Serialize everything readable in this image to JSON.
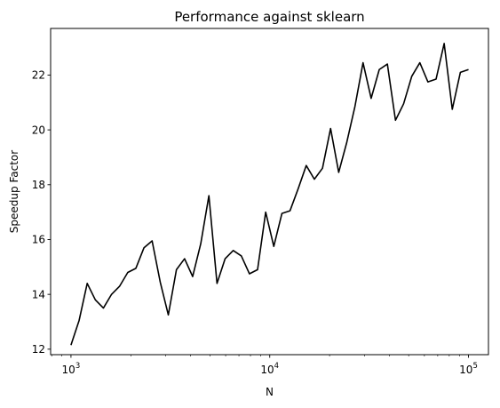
{
  "chart_data": {
    "type": "line",
    "title": "Performance against sklearn",
    "xlabel": "N",
    "ylabel": "Speedup Factor",
    "x_scale": "log",
    "xlim": [
      790,
      126000
    ],
    "ylim": [
      11.8,
      23.7
    ],
    "grid": false,
    "x_ticks": [
      {
        "base": "10",
        "exp": "3",
        "value": 1000
      },
      {
        "base": "10",
        "exp": "4",
        "value": 10000
      },
      {
        "base": "10",
        "exp": "5",
        "value": 100000
      }
    ],
    "y_ticks": [
      {
        "value": 12,
        "label": "12"
      },
      {
        "value": 14,
        "label": "14"
      },
      {
        "value": 16,
        "label": "16"
      },
      {
        "value": 18,
        "label": "18"
      },
      {
        "value": 20,
        "label": "20"
      },
      {
        "value": 22,
        "label": "22"
      }
    ],
    "series": [
      {
        "color": "#000000",
        "x": [
          1000,
          1099,
          1207,
          1326,
          1456,
          1600,
          1758,
          1931,
          2121,
          2330,
          2560,
          2812,
          3089,
          3393,
          3728,
          4095,
          4498,
          4942,
          5429,
          5964,
          6551,
          7197,
          7906,
          8685,
          9541,
          10481,
          11514,
          12649,
          13895,
          15264,
          16768,
          18420,
          20236,
          22230,
          24420,
          26827,
          29471,
          32375,
          35565,
          39070,
          42919,
          47149,
          51794,
          56899,
          62505,
          68665,
          75431,
          82864,
          91030,
          100000
        ],
        "y": [
          12.15,
          13.05,
          14.4,
          13.8,
          13.5,
          14.0,
          14.3,
          14.8,
          14.95,
          15.7,
          15.95,
          14.45,
          13.25,
          14.9,
          15.3,
          14.65,
          15.85,
          17.6,
          14.4,
          15.3,
          15.6,
          15.4,
          14.75,
          14.9,
          17.0,
          15.75,
          16.95,
          17.05,
          17.85,
          18.7,
          18.2,
          18.6,
          20.05,
          18.45,
          19.55,
          20.85,
          22.45,
          21.15,
          22.2,
          22.4,
          20.35,
          20.95,
          21.95,
          22.45,
          21.75,
          21.85,
          23.15,
          20.75,
          22.1,
          22.2
        ]
      }
    ]
  }
}
